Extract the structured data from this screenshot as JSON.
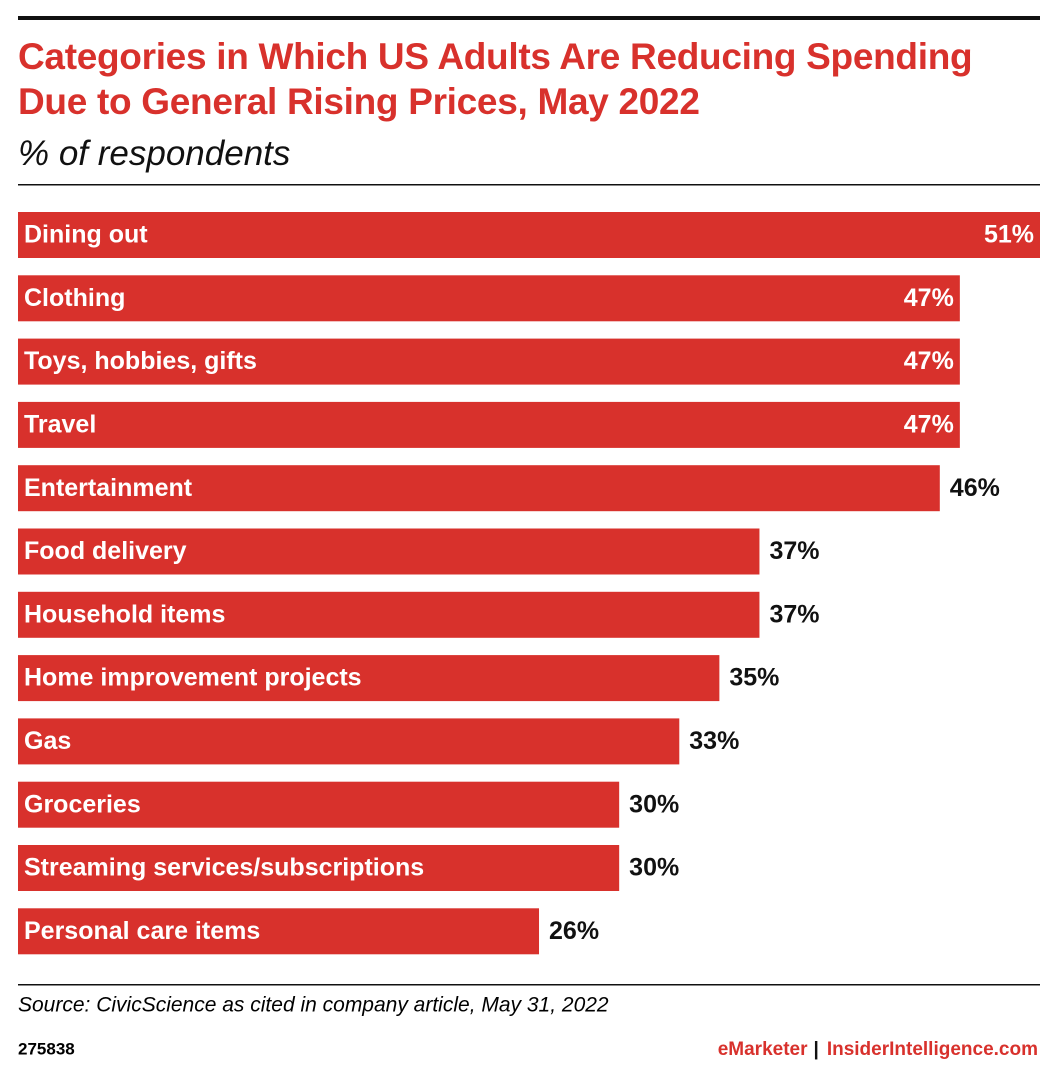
{
  "chart_data": {
    "type": "hbar",
    "title": "Categories in Which US Adults Are Reducing Spending Due to General Rising Prices, May 2022",
    "subtitle": "% of respondents",
    "categories": [
      "Dining out",
      "Clothing",
      "Toys, hobbies, gifts",
      "Travel",
      "Entertainment",
      "Food delivery",
      "Household items",
      "Home improvement projects",
      "Gas",
      "Groceries",
      "Streaming services/subscriptions",
      "Personal care items"
    ],
    "values": [
      51,
      47,
      47,
      47,
      46,
      37,
      37,
      35,
      33,
      30,
      30,
      26
    ],
    "value_labels": [
      "51%",
      "47%",
      "47%",
      "47%",
      "46%",
      "37%",
      "37%",
      "35%",
      "33%",
      "30%",
      "30%",
      "26%"
    ],
    "color": "#d8312c"
  },
  "footer": {
    "source": "Source: CivicScience as cited in company article, May 31, 2022",
    "chart_id": "275838",
    "publisher": "eMarketer",
    "separator": "|",
    "site": "InsiderIntelligence.com"
  }
}
